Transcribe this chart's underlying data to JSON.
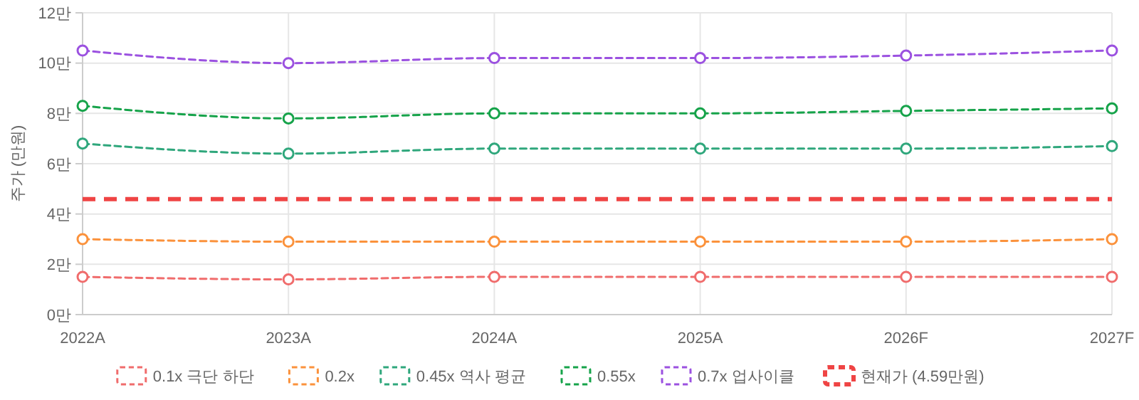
{
  "chart_data": {
    "type": "line",
    "ylabel": "주가 (만원)",
    "categories": [
      "2022A",
      "2023A",
      "2024A",
      "2025A",
      "2026F",
      "2027F"
    ],
    "ylim": [
      0,
      12
    ],
    "yticks": [
      {
        "value": 0,
        "label": "0만"
      },
      {
        "value": 2,
        "label": "2만"
      },
      {
        "value": 4,
        "label": "4만"
      },
      {
        "value": 6,
        "label": "6만"
      },
      {
        "value": 8,
        "label": "8만"
      },
      {
        "value": 10,
        "label": "10만"
      },
      {
        "value": 12,
        "label": "12만"
      }
    ],
    "grid": true,
    "legend": "bottom",
    "marker": "circle",
    "line_style": "dashed",
    "series": [
      {
        "name": "0.1x 극단 하단",
        "color": "#f06c6c",
        "values": [
          1.5,
          1.4,
          1.5,
          1.5,
          1.5,
          1.5
        ]
      },
      {
        "name": "0.2x",
        "color": "#fb923c",
        "values": [
          3.0,
          2.9,
          2.9,
          2.9,
          2.9,
          3.0
        ]
      },
      {
        "name": "0.45x 역사 평균",
        "color": "#2fa77c",
        "values": [
          6.8,
          6.4,
          6.6,
          6.6,
          6.6,
          6.7
        ]
      },
      {
        "name": "0.55x",
        "color": "#16a34a",
        "values": [
          8.3,
          7.8,
          8.0,
          8.0,
          8.1,
          8.2
        ]
      },
      {
        "name": "0.7x 업사이클",
        "color": "#9b51e0",
        "values": [
          10.5,
          10.0,
          10.2,
          10.2,
          10.3,
          10.5
        ]
      }
    ],
    "ref_lines": [
      {
        "axis": "y",
        "value": 4.59,
        "label": "현재가 (4.59만원)",
        "color": "#ef4444",
        "line_style": "dashed"
      }
    ]
  }
}
